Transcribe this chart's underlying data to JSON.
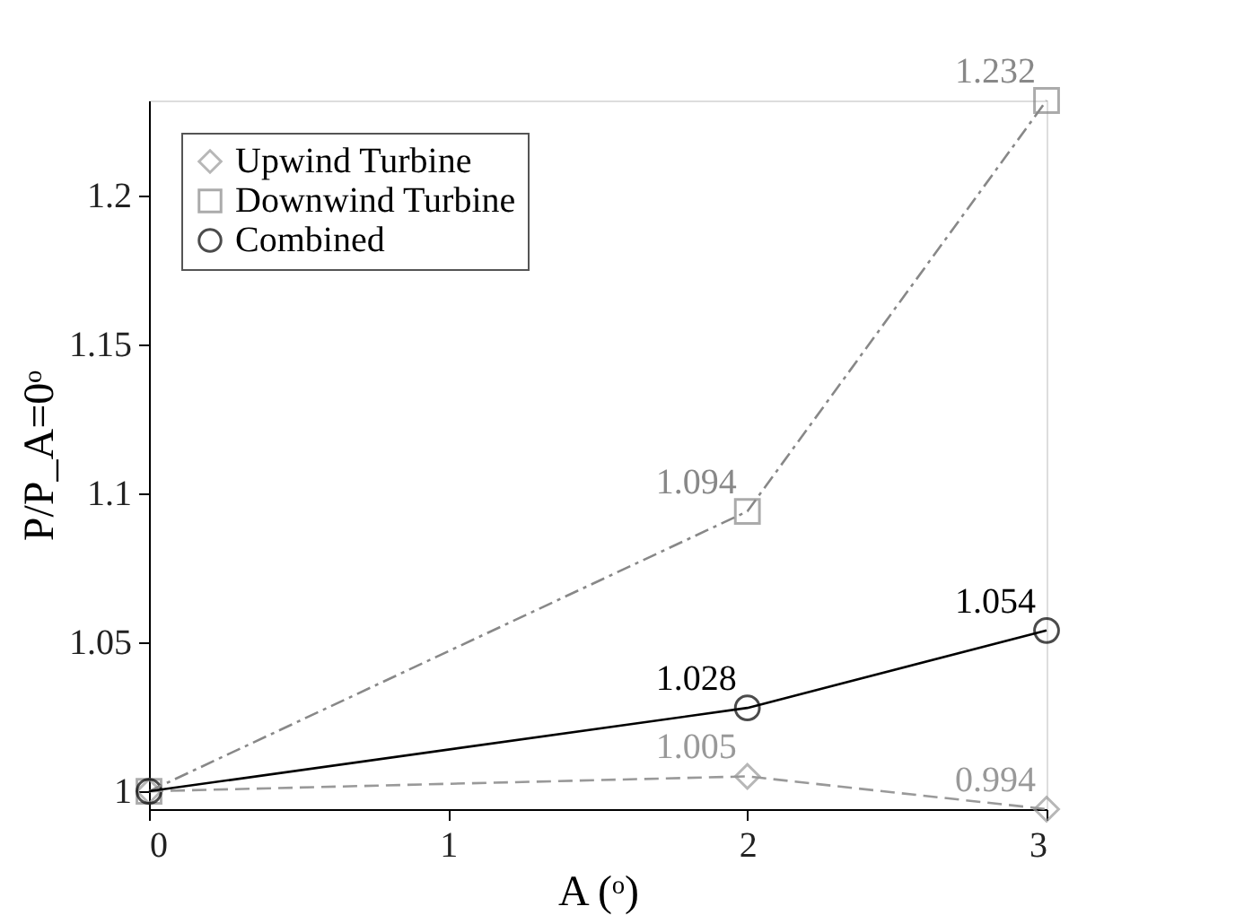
{
  "chart_data": {
    "type": "line",
    "xlabel": "A (ᵒ)",
    "ylabel": "P/P_A=0ᵒ",
    "x": [
      0,
      2,
      3
    ],
    "xlim": [
      0,
      3
    ],
    "xticks": [
      0,
      1,
      2,
      3
    ],
    "ylim": [
      0.994,
      1.232
    ],
    "yticks": [
      1,
      1.05,
      1.1,
      1.15,
      1.2
    ],
    "series": [
      {
        "name": "Upwind Turbine",
        "color": "#999999",
        "values": [
          1,
          1.005,
          0.994
        ],
        "value_labels": [
          null,
          "1.005",
          "0.994"
        ],
        "marker": "diamond",
        "line_style": "dashed"
      },
      {
        "name": "Downwind Turbine",
        "color": "#888888",
        "values": [
          1,
          1.094,
          1.232
        ],
        "value_labels": [
          null,
          "1.094",
          "1.232"
        ],
        "marker": "square",
        "line_style": "dotted"
      },
      {
        "name": "Combined",
        "color": "#000000",
        "values": [
          1,
          1.028,
          1.054
        ],
        "value_labels": [
          null,
          "1.028",
          "1.054"
        ],
        "marker": "circle",
        "line_style": "solid"
      }
    ],
    "legend": "top left",
    "grid": false
  }
}
